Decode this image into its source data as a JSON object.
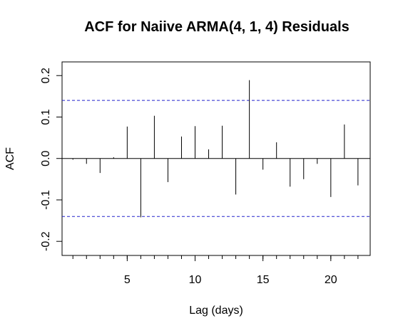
{
  "chart_data": {
    "type": "bar",
    "title": "ACF for Naiive ARMA(4, 1, 4) Residuals",
    "xlabel": "Lag (days)",
    "ylabel": "ACF",
    "x": [
      1,
      2,
      3,
      4,
      5,
      6,
      7,
      8,
      9,
      10,
      11,
      12,
      13,
      14,
      15,
      16,
      17,
      18,
      19,
      20,
      21,
      22
    ],
    "values": [
      -0.003,
      -0.013,
      -0.035,
      0.003,
      0.077,
      -0.142,
      0.103,
      -0.057,
      0.053,
      0.078,
      0.022,
      0.079,
      -0.087,
      0.189,
      -0.027,
      0.039,
      -0.068,
      -0.05,
      -0.013,
      -0.093,
      0.082,
      -0.065
    ],
    "confidence_bounds": [
      0.14,
      -0.14
    ],
    "xlim": [
      0.2,
      22.9
    ],
    "ylim": [
      -0.234,
      0.233
    ],
    "xticks": [
      5,
      10,
      15,
      20
    ],
    "xticks_minor": [
      1,
      2,
      3,
      4,
      5,
      6,
      7,
      8,
      9,
      10,
      11,
      12,
      13,
      14,
      15,
      16,
      17,
      18,
      19,
      20,
      21,
      22
    ],
    "yticks": [
      -0.2,
      -0.1,
      0.0,
      0.1,
      0.2
    ],
    "ytick_labels": [
      "-0.2",
      "-0.1",
      "0.0",
      "0.1",
      "0.2"
    ],
    "grid": false,
    "colors": {
      "bars": "#000000",
      "confidence": "#2222cc"
    }
  }
}
